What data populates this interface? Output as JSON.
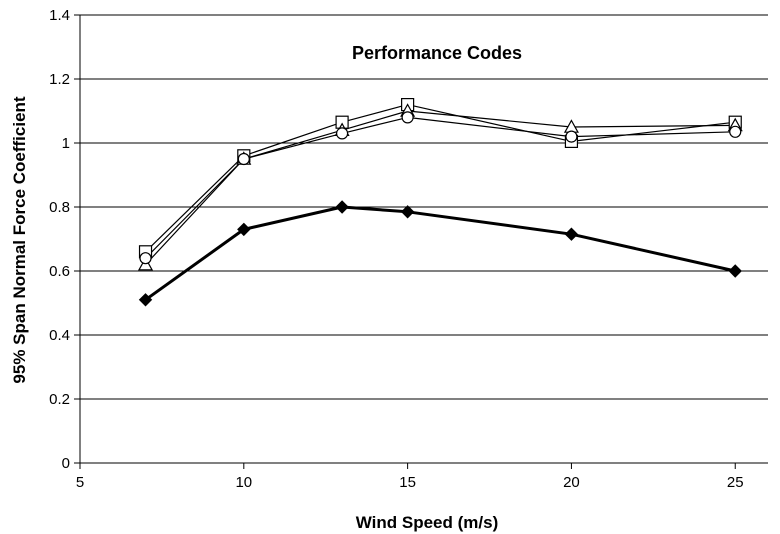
{
  "chart_data": {
    "type": "line",
    "title": "Performance Codes",
    "xlabel": "Wind Speed (m/s)",
    "ylabel": "95% Span Normal Force Coefficient",
    "xlim": [
      5,
      26
    ],
    "ylim": [
      0,
      1.4
    ],
    "x_ticks": [
      5,
      10,
      15,
      20,
      25
    ],
    "y_ticks": [
      0,
      0.2,
      0.4,
      0.6,
      0.8,
      1,
      1.2,
      1.4
    ],
    "grid": "horizontal",
    "legend": "none",
    "series": [
      {
        "marker": "filled-diamond",
        "line": "bold",
        "color": "#000000",
        "x": [
          7,
          10,
          13,
          15,
          20,
          25
        ],
        "y": [
          0.51,
          0.73,
          0.8,
          0.785,
          0.715,
          0.6
        ]
      },
      {
        "marker": "open-square",
        "line": "thin",
        "color": "#000000",
        "x": [
          7,
          10,
          13,
          15,
          20,
          25
        ],
        "y": [
          0.66,
          0.96,
          1.065,
          1.12,
          1.005,
          1.065
        ]
      },
      {
        "marker": "open-triangle",
        "line": "thin",
        "color": "#000000",
        "x": [
          7,
          10,
          13,
          15,
          20,
          25
        ],
        "y": [
          0.62,
          0.95,
          1.04,
          1.1,
          1.05,
          1.055
        ]
      },
      {
        "marker": "open-circle",
        "line": "thin",
        "color": "#000000",
        "x": [
          7,
          10,
          13,
          15,
          20,
          25
        ],
        "y": [
          0.64,
          0.95,
          1.03,
          1.08,
          1.02,
          1.035
        ]
      }
    ]
  }
}
